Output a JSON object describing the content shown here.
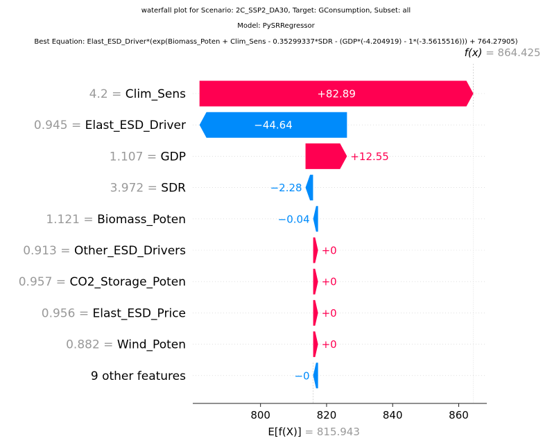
{
  "title_lines": [
    "waterfall plot for Scenario: 2C_SSP2_DA30, Target: GConsumption, Subset: all",
    "Model: PySRRegressor",
    "Best Equation: Elast_ESD_Driver*(exp(Biomass_Poten + Clim_Sens - 0.35299337*SDR - (GDP*(-4.204919) - 1*(-3.5615516))) + 764.27905)"
  ],
  "chart_data": {
    "type": "waterfall",
    "base_value": 815.943,
    "fx_value": 864.425,
    "fx_label": "f(x)",
    "base_label": "E[f(X)]",
    "fx_text": "= 864.425",
    "base_text": "= 815.943",
    "xlim": [
      779.5,
      868.5
    ],
    "xticks": [
      800,
      820,
      840,
      860
    ],
    "colors": {
      "positive": "#ff0051",
      "negative": "#008bfb",
      "value_label": "#999999"
    },
    "rows": [
      {
        "value_label": "4.2",
        "feature": "Clim_Sens",
        "shap": 82.89,
        "text": "+82.89"
      },
      {
        "value_label": "0.945",
        "feature": "Elast_ESD_Driver",
        "shap": -44.64,
        "text": "−44.64"
      },
      {
        "value_label": "1.107",
        "feature": "GDP",
        "shap": 12.55,
        "text": "+12.55"
      },
      {
        "value_label": "3.972",
        "feature": "SDR",
        "shap": -2.28,
        "text": "−2.28"
      },
      {
        "value_label": "1.121",
        "feature": "Biomass_Poten",
        "shap": -0.04,
        "text": "−0.04"
      },
      {
        "value_label": "0.913",
        "feature": "Other_ESD_Drivers",
        "shap": 0.0,
        "text": "+0"
      },
      {
        "value_label": "0.957",
        "feature": "CO2_Storage_Poten",
        "shap": 0.0,
        "text": "+0"
      },
      {
        "value_label": "0.956",
        "feature": "Elast_ESD_Price",
        "shap": 0.0,
        "text": "+0"
      },
      {
        "value_label": "0.882",
        "feature": "Wind_Poten",
        "shap": 0.0,
        "text": "+0"
      },
      {
        "value_label": "",
        "feature": "9 other features",
        "shap": 0.0,
        "text": "−0",
        "sign": "negative"
      }
    ]
  }
}
